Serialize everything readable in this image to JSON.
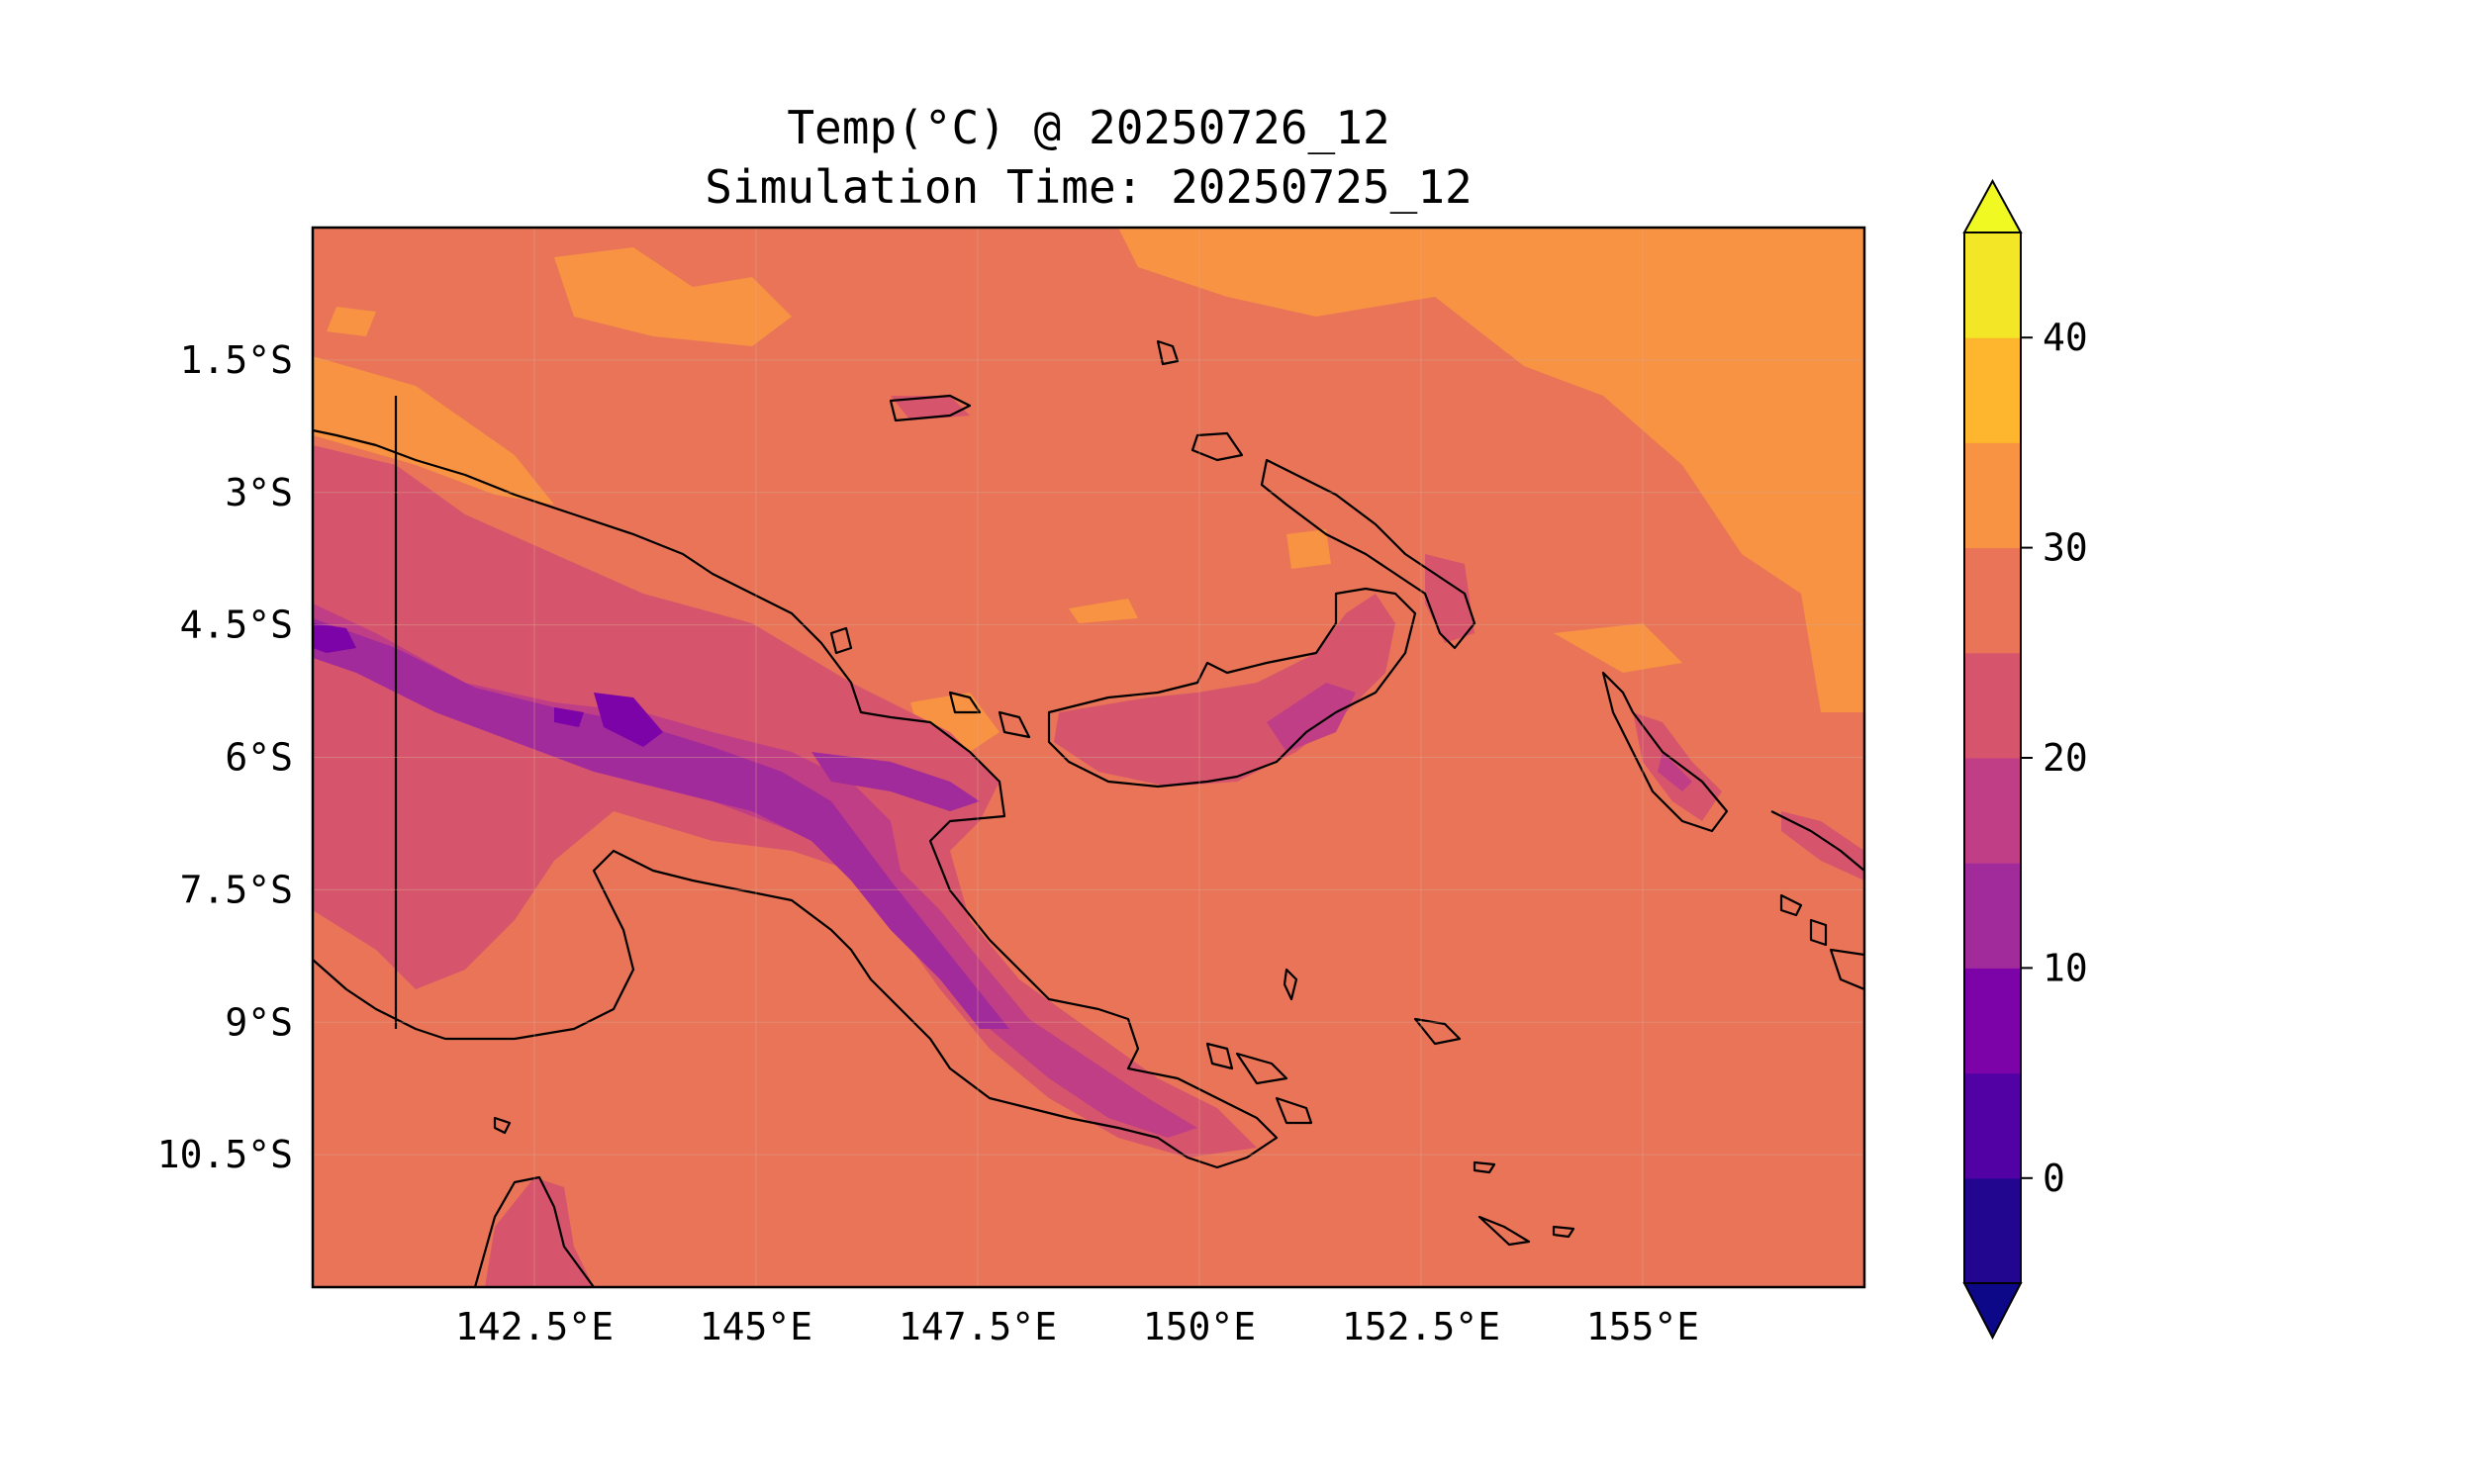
{
  "title": {
    "line1": "Temp(°C) @ 20250726_12",
    "line2": "Simulation Time: 20250725_12"
  },
  "map": {
    "lon_range": [
      140.0,
      157.5
    ],
    "lat_range": [
      -12.0,
      0.0
    ],
    "lon_ticks": [
      {
        "value": 142.5,
        "label": "142.5°E"
      },
      {
        "value": 145.0,
        "label": "145°E"
      },
      {
        "value": 147.5,
        "label": "147.5°E"
      },
      {
        "value": 150.0,
        "label": "150°E"
      },
      {
        "value": 152.5,
        "label": "152.5°E"
      },
      {
        "value": 155.0,
        "label": "155°E"
      }
    ],
    "lat_ticks": [
      {
        "value": -1.5,
        "label": "1.5°S"
      },
      {
        "value": -3.0,
        "label": "3°S"
      },
      {
        "value": -4.5,
        "label": "4.5°S"
      },
      {
        "value": -6.0,
        "label": "6°S"
      },
      {
        "value": -7.5,
        "label": "7.5°S"
      },
      {
        "value": -9.0,
        "label": "9°S"
      },
      {
        "value": -10.5,
        "label": "10.5°S"
      }
    ],
    "background_color": "#e97458"
  },
  "colorbar": {
    "levels": [
      -5,
      0,
      5,
      10,
      15,
      20,
      25,
      30,
      35,
      40,
      45
    ],
    "colors": [
      "#220690",
      "#5202a4",
      "#7c03a8",
      "#a22b9b",
      "#c03e85",
      "#d6556d",
      "#e97458",
      "#f79342",
      "#fdb62d",
      "#f3e626"
    ],
    "under_color": "#0d0887",
    "over_color": "#f0f921",
    "ticks": [
      {
        "value": 0,
        "label": "0"
      },
      {
        "value": 10,
        "label": "10"
      },
      {
        "value": 20,
        "label": "20"
      },
      {
        "value": 30,
        "label": "30"
      },
      {
        "value": 40,
        "label": "40"
      }
    ]
  }
}
